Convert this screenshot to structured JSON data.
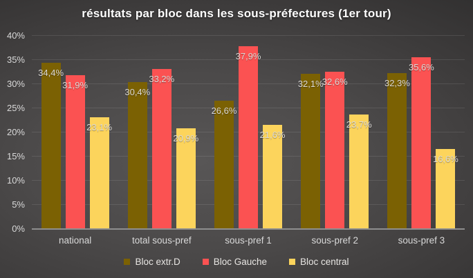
{
  "chart_data": {
    "type": "bar",
    "title": "résultats par bloc dans les sous-préfectures (1er tour)",
    "categories": [
      "national",
      "total sous-pref",
      "sous-pref 1",
      "sous-pref 2",
      "sous-pref 3"
    ],
    "series": [
      {
        "name": "Bloc extr.D",
        "color": "#7B6103",
        "values": [
          34.4,
          30.4,
          26.6,
          32.1,
          32.3
        ],
        "labels": [
          "34,4%",
          "30,4%",
          "26,6%",
          "32,1%",
          "32,3%"
        ]
      },
      {
        "name": "Bloc Gauche",
        "color": "#FB5252",
        "values": [
          31.9,
          33.2,
          37.9,
          32.6,
          35.6
        ],
        "labels": [
          "31,9%",
          "33,2%",
          "37,9%",
          "32,6%",
          "35,6%"
        ]
      },
      {
        "name": "Bloc central",
        "color": "#FCD45C",
        "values": [
          23.1,
          20.9,
          21.6,
          23.7,
          16.6
        ],
        "labels": [
          "23,1%",
          "20,9%",
          "21,6%",
          "23,7%",
          "16,6%"
        ]
      }
    ],
    "xlabel": "",
    "ylabel": "",
    "ylim": [
      0,
      40
    ],
    "ytick_step": 5,
    "ytick_labels": [
      "0%",
      "5%",
      "10%",
      "15%",
      "20%",
      "25%",
      "30%",
      "35%",
      "40%"
    ],
    "grid": true,
    "legend_position": "bottom",
    "colors": {
      "background_center": "#565454",
      "background_edge": "#222121",
      "gridline": "rgba(255,255,255,0.10)",
      "axis_line": "#8f8f8f",
      "text": "#d9d9d9",
      "title_text": "#ffffff"
    }
  }
}
